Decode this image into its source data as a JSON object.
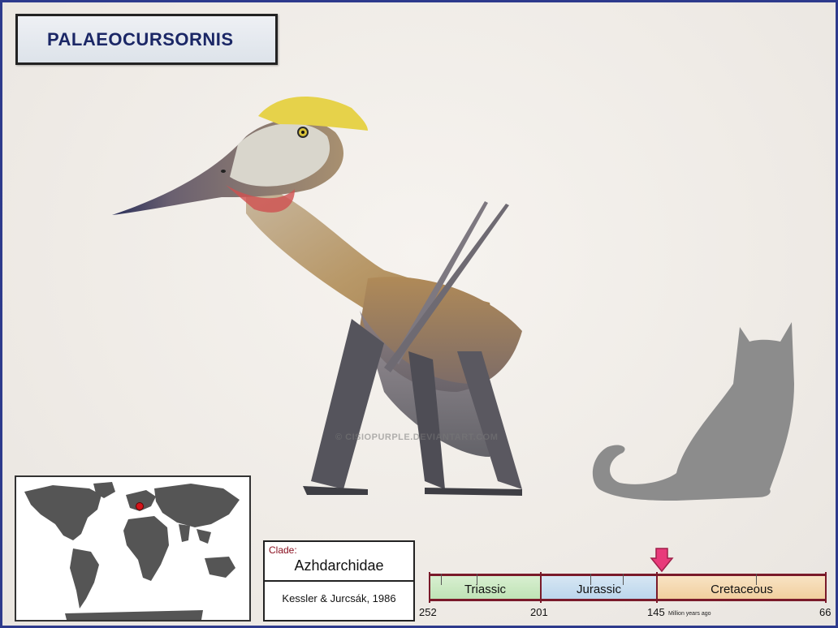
{
  "title": "PALAEOCURSORNIS",
  "clade": {
    "label": "Clade:",
    "name": "Azhdarchidae",
    "authority": "Kessler & Jurcsák, 1986"
  },
  "timeline": {
    "periods": [
      {
        "name": "Triassic",
        "color": "#cfe8c8"
      },
      {
        "name": "Jurassic",
        "color": "#c9dceb"
      },
      {
        "name": "Cretaceous",
        "color": "#f3d8b0"
      }
    ],
    "boundaries": [
      "252",
      "201",
      "145",
      "66"
    ],
    "unit": "Million years ago",
    "marker_value_mya": 145
  },
  "map": {
    "marker_region": "Romania",
    "marker_color": "#d4141a"
  },
  "colors": {
    "frame": "#2d3a8c",
    "title_text": "#1b2766",
    "timeline_border": "#7a1a2a",
    "marker_arrow": "#e83a7a"
  },
  "watermark": "© CISIOPURPLE.DEVIANTART.COM"
}
